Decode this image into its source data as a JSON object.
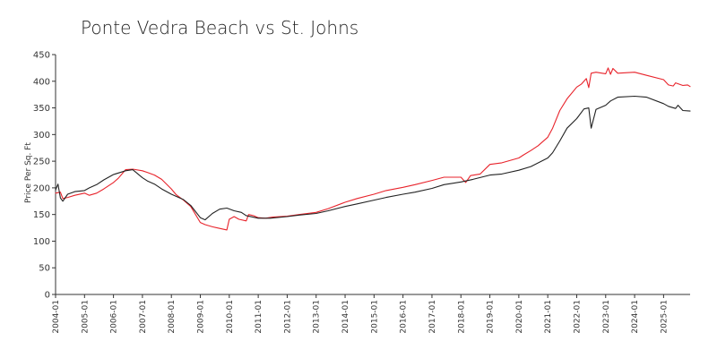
{
  "chart_data": {
    "type": "line",
    "title": "Ponte Vedra Beach vs St.  Johns",
    "xlabel": "",
    "ylabel": "Price Per Sq. Ft",
    "ylim": [
      0,
      450
    ],
    "yticks": [
      0,
      50,
      100,
      150,
      200,
      250,
      300,
      350,
      400,
      450
    ],
    "xlim": [
      "2004-01",
      "2025-12"
    ],
    "xtick_labels": [
      "2004-01",
      "2005-01",
      "2006-01",
      "2007-01",
      "2008-01",
      "2009-01",
      "2010-01",
      "2011-01",
      "2012-01",
      "2013-01",
      "2014-01",
      "2015-01",
      "2016-01",
      "2017-01",
      "2018-01",
      "2019-01",
      "2020-01",
      "2021-01",
      "2022-01",
      "2023-01",
      "2024-01",
      "2025-01"
    ],
    "grid": false,
    "legend": "none",
    "series": [
      {
        "color": "#e8232b",
        "points": [
          [
            "2004-01",
            190
          ],
          [
            "2004-03",
            192
          ],
          [
            "2004-04",
            180
          ],
          [
            "2004-06",
            182
          ],
          [
            "2004-09",
            186
          ],
          [
            "2005-01",
            190
          ],
          [
            "2005-03",
            186
          ],
          [
            "2005-06",
            190
          ],
          [
            "2005-09",
            198
          ],
          [
            "2006-01",
            210
          ],
          [
            "2006-03",
            218
          ],
          [
            "2006-06",
            234
          ],
          [
            "2006-09",
            235
          ],
          [
            "2007-01",
            232
          ],
          [
            "2007-03",
            229
          ],
          [
            "2007-06",
            224
          ],
          [
            "2007-09",
            216
          ],
          [
            "2008-01",
            198
          ],
          [
            "2008-03",
            187
          ],
          [
            "2008-06",
            177
          ],
          [
            "2008-09",
            165
          ],
          [
            "2009-01",
            135
          ],
          [
            "2009-03",
            131
          ],
          [
            "2009-06",
            127
          ],
          [
            "2009-09",
            124
          ],
          [
            "2009-12",
            121
          ],
          [
            "2010-01",
            141
          ],
          [
            "2010-03",
            146
          ],
          [
            "2010-05",
            141
          ],
          [
            "2010-08",
            138
          ],
          [
            "2010-09",
            150
          ],
          [
            "2010-11",
            148
          ],
          [
            "2011-01",
            144
          ],
          [
            "2011-04",
            143
          ],
          [
            "2011-07",
            145
          ],
          [
            "2012-01",
            147
          ],
          [
            "2012-06",
            150
          ],
          [
            "2013-01",
            154
          ],
          [
            "2013-06",
            161
          ],
          [
            "2014-01",
            173
          ],
          [
            "2014-06",
            180
          ],
          [
            "2015-01",
            188
          ],
          [
            "2015-06",
            195
          ],
          [
            "2016-01",
            201
          ],
          [
            "2016-06",
            206
          ],
          [
            "2017-01",
            214
          ],
          [
            "2017-06",
            220
          ],
          [
            "2018-01",
            220
          ],
          [
            "2018-03",
            210
          ],
          [
            "2018-05",
            223
          ],
          [
            "2018-09",
            226
          ],
          [
            "2019-01",
            244
          ],
          [
            "2019-06",
            247
          ],
          [
            "2020-01",
            256
          ],
          [
            "2020-03",
            262
          ],
          [
            "2020-06",
            270
          ],
          [
            "2020-09",
            279
          ],
          [
            "2021-01",
            295
          ],
          [
            "2021-03",
            312
          ],
          [
            "2021-06",
            345
          ],
          [
            "2021-09",
            367
          ],
          [
            "2022-01",
            389
          ],
          [
            "2022-03",
            395
          ],
          [
            "2022-05",
            405
          ],
          [
            "2022-06",
            388
          ],
          [
            "2022-07",
            415
          ],
          [
            "2022-09",
            417
          ],
          [
            "2023-01",
            414
          ],
          [
            "2023-02",
            425
          ],
          [
            "2023-03",
            413
          ],
          [
            "2023-04",
            424
          ],
          [
            "2023-06",
            415
          ],
          [
            "2024-01",
            417
          ],
          [
            "2024-06",
            411
          ],
          [
            "2025-01",
            403
          ],
          [
            "2025-03",
            393
          ],
          [
            "2025-05",
            391
          ],
          [
            "2025-06",
            397
          ],
          [
            "2025-09",
            392
          ],
          [
            "2025-11",
            393
          ],
          [
            "2025-12",
            390
          ]
        ]
      },
      {
        "color": "#222222",
        "points": [
          [
            "2004-01",
            196
          ],
          [
            "2004-02",
            207
          ],
          [
            "2004-03",
            181
          ],
          [
            "2004-04",
            175
          ],
          [
            "2004-06",
            188
          ],
          [
            "2004-09",
            193
          ],
          [
            "2005-01",
            195
          ],
          [
            "2005-03",
            200
          ],
          [
            "2005-06",
            206
          ],
          [
            "2005-09",
            215
          ],
          [
            "2006-01",
            225
          ],
          [
            "2006-06",
            232
          ],
          [
            "2006-09",
            234
          ],
          [
            "2007-01",
            219
          ],
          [
            "2007-03",
            213
          ],
          [
            "2007-06",
            207
          ],
          [
            "2007-09",
            198
          ],
          [
            "2008-01",
            188
          ],
          [
            "2008-06",
            178
          ],
          [
            "2008-09",
            167
          ],
          [
            "2009-01",
            144
          ],
          [
            "2009-03",
            140
          ],
          [
            "2009-06",
            152
          ],
          [
            "2009-09",
            160
          ],
          [
            "2009-12",
            162
          ],
          [
            "2010-03",
            157
          ],
          [
            "2010-06",
            154
          ],
          [
            "2010-08",
            148
          ],
          [
            "2011-01",
            143
          ],
          [
            "2011-06",
            143
          ],
          [
            "2012-01",
            146
          ],
          [
            "2012-06",
            149
          ],
          [
            "2013-01",
            152
          ],
          [
            "2013-06",
            157
          ],
          [
            "2014-01",
            165
          ],
          [
            "2014-06",
            170
          ],
          [
            "2015-01",
            177
          ],
          [
            "2015-06",
            182
          ],
          [
            "2016-01",
            188
          ],
          [
            "2016-06",
            192
          ],
          [
            "2017-01",
            199
          ],
          [
            "2017-06",
            206
          ],
          [
            "2018-01",
            211
          ],
          [
            "2018-06",
            216
          ],
          [
            "2019-01",
            224
          ],
          [
            "2019-06",
            226
          ],
          [
            "2020-01",
            233
          ],
          [
            "2020-06",
            240
          ],
          [
            "2021-01",
            256
          ],
          [
            "2021-03",
            266
          ],
          [
            "2021-06",
            288
          ],
          [
            "2021-09",
            312
          ],
          [
            "2022-01",
            330
          ],
          [
            "2022-04",
            348
          ],
          [
            "2022-06",
            350
          ],
          [
            "2022-07",
            312
          ],
          [
            "2022-09",
            347
          ],
          [
            "2023-01",
            355
          ],
          [
            "2023-03",
            363
          ],
          [
            "2023-06",
            370
          ],
          [
            "2024-01",
            372
          ],
          [
            "2024-06",
            370
          ],
          [
            "2025-01",
            358
          ],
          [
            "2025-03",
            353
          ],
          [
            "2025-06",
            349
          ],
          [
            "2025-07",
            355
          ],
          [
            "2025-09",
            345
          ],
          [
            "2025-12",
            344
          ]
        ]
      }
    ]
  }
}
